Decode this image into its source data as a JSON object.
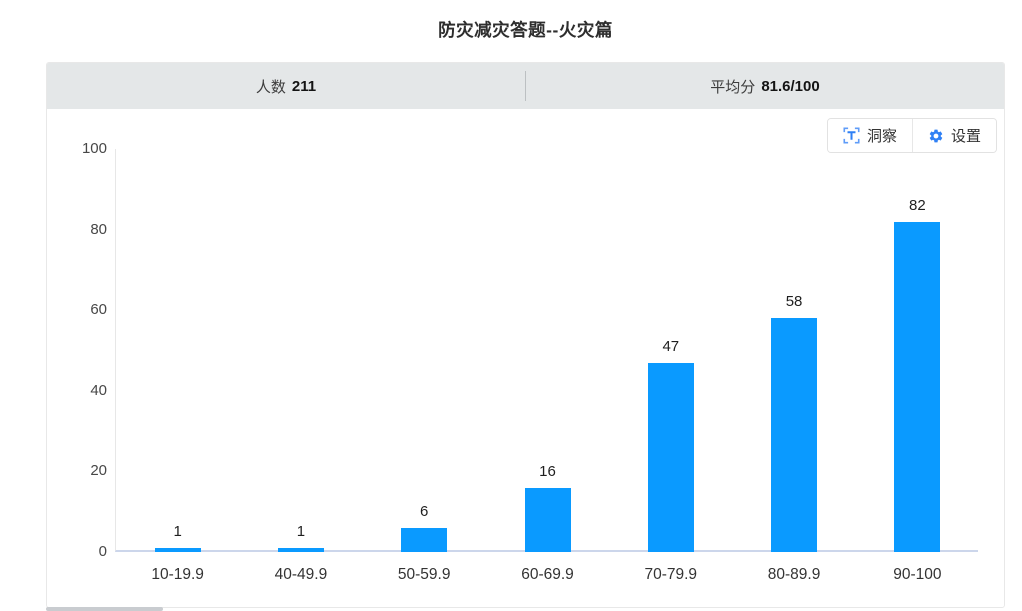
{
  "page": {
    "title": "防灾减灾答题--火灾篇"
  },
  "stats": {
    "count_label": "人数",
    "count_value": "211",
    "avg_label": "平均分",
    "avg_value": "81.6/100"
  },
  "toolbar": {
    "insight_label": "洞察",
    "settings_label": "设置",
    "icon_color": "#2f80f5",
    "icon_bracket_color": "#5f9cf8"
  },
  "chart_data": {
    "type": "bar",
    "title": "防灾减灾答题--火灾篇",
    "categories": [
      "10-19.9",
      "40-49.9",
      "50-59.9",
      "60-69.9",
      "70-79.9",
      "80-89.9",
      "90-100"
    ],
    "values": [
      1,
      1,
      6,
      16,
      47,
      58,
      82
    ],
    "xlabel": "",
    "ylabel": "",
    "ylim": [
      0,
      100
    ],
    "yticks": [
      0,
      20,
      40,
      60,
      80,
      100
    ],
    "grid": false,
    "legend": false,
    "data_labels": true,
    "bar_color": "#0a9aff",
    "axis_line_color": "#ccd6eb"
  },
  "colors": {
    "stats_bar_bg": "#e4e7e8",
    "panel_border": "#e8e8e8"
  }
}
